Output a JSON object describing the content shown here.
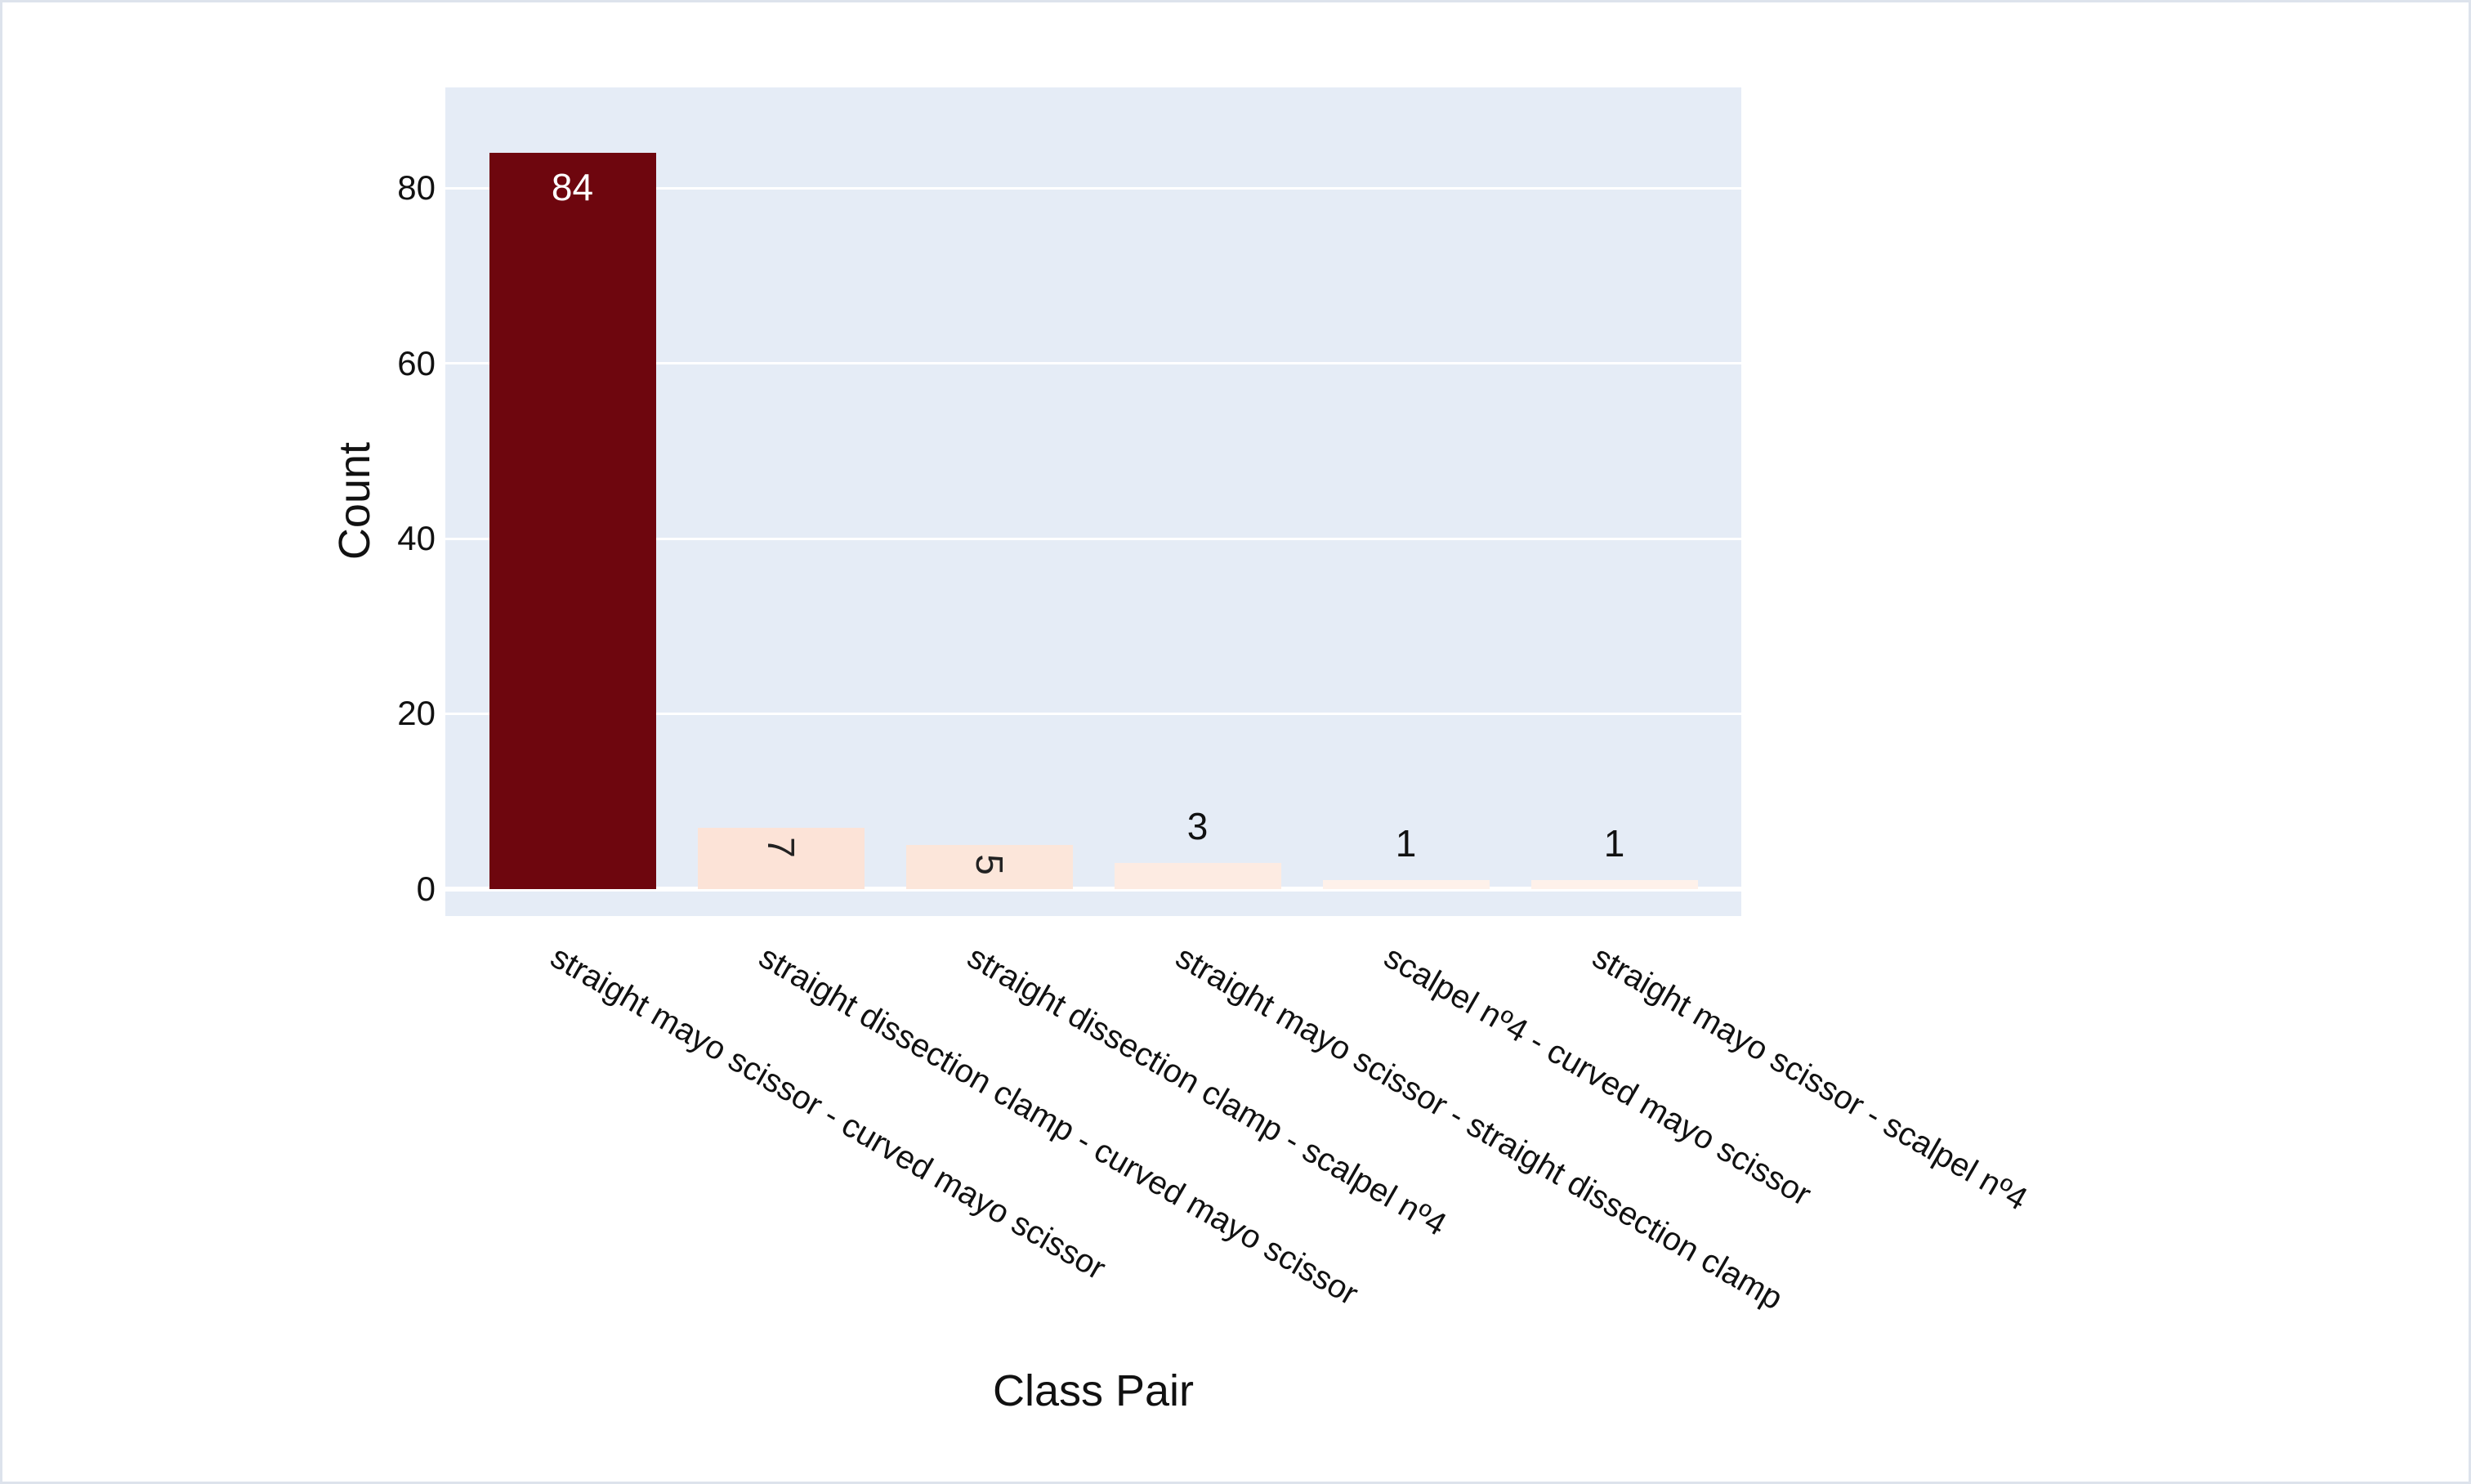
{
  "chart_data": {
    "type": "bar",
    "title": "",
    "xlabel": "Class Pair",
    "ylabel": "Count",
    "categories": [
      "straight mayo scissor - curved mayo scissor",
      "straight dissection clamp - curved mayo scissor",
      "straight dissection clamp - scalpel nº4",
      "straight mayo scissor - straight dissection clamp",
      "scalpel nº4 - curved mayo scissor",
      "straight mayo scissor - scalpel nº4"
    ],
    "values": [
      84,
      7,
      5,
      3,
      1,
      1
    ],
    "bar_colors": [
      "#6e060e",
      "#fce3d7",
      "#fce6da",
      "#fdebe2",
      "#fef1ea",
      "#fef1ea"
    ],
    "bar_label_placement": [
      "inside-horizontal",
      "inside-rotated",
      "inside-rotated",
      "outside",
      "outside",
      "outside"
    ],
    "bar_label_colors": [
      "#ffffff",
      "#222222",
      "#222222",
      "#111111",
      "#111111",
      "#111111"
    ],
    "yticks": [
      0,
      20,
      40,
      60,
      80
    ],
    "ylim": [
      -3.1,
      91.5
    ],
    "grid": "horizontal",
    "legend": "none",
    "xtick_angle_deg": 30,
    "plot_bg_color": "#e5ecf6",
    "gridline_color": "#ffffff",
    "page_bg_color": "#ffffff",
    "border_color": "#dde3ec"
  }
}
